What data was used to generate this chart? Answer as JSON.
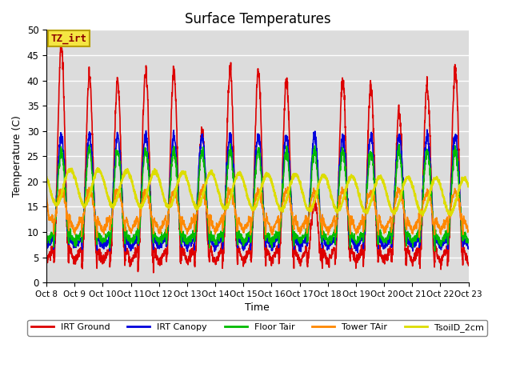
{
  "title": "Surface Temperatures",
  "ylabel": "Temperature (C)",
  "xlabel": "Time",
  "ylim": [
    0,
    50
  ],
  "bg_color": "#dcdcdc",
  "annotation_text": "TZ_irt",
  "annotation_bg": "#f5e642",
  "annotation_border": "#b8a000",
  "series": {
    "IRT Ground": {
      "color": "#dd0000",
      "lw": 1.2
    },
    "IRT Canopy": {
      "color": "#0000dd",
      "lw": 1.2
    },
    "Floor Tair": {
      "color": "#00bb00",
      "lw": 1.2
    },
    "Tower TAir": {
      "color": "#ff8800",
      "lw": 1.2
    },
    "TsoilD_2cm": {
      "color": "#dddd00",
      "lw": 1.8
    }
  },
  "n_days": 15,
  "points_per_day": 144,
  "xtick_labels": [
    "Oct 8",
    "Oct 9",
    "Oct 10",
    "Oct 11",
    "Oct 12",
    "Oct 13",
    "Oct 14",
    "Oct 15",
    "Oct 16",
    "Oct 17",
    "Oct 18",
    "Oct 19",
    "Oct 20",
    "Oct 21",
    "Oct 22",
    "Oct 23"
  ]
}
